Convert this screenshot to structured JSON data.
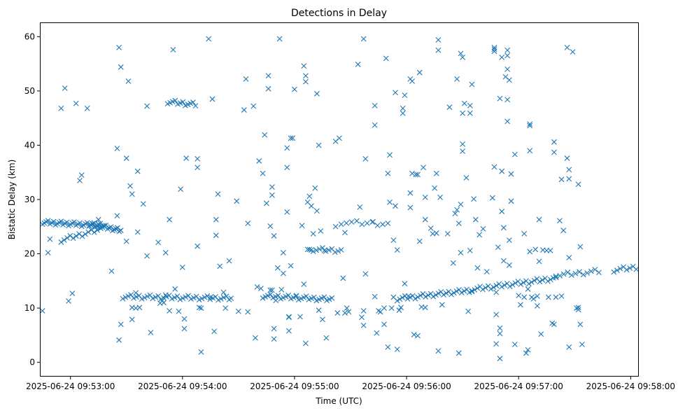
{
  "chart_data": {
    "type": "scatter",
    "title": "Detections in Delay",
    "xlabel": "Time (UTC)",
    "ylabel": "Bistatic Delay (km)",
    "marker": "x",
    "color": "#1f77b4",
    "xlim_seconds": [
      -16,
      304
    ],
    "ylim": [
      -2.5,
      62.5
    ],
    "x_ticks": [
      {
        "t": 0,
        "label": "2025-06-24 09:53:00"
      },
      {
        "t": 60,
        "label": "2025-06-24 09:54:00"
      },
      {
        "t": 120,
        "label": "2025-06-24 09:55:00"
      },
      {
        "t": 180,
        "label": "2025-06-24 09:56:00"
      },
      {
        "t": 240,
        "label": "2025-06-24 09:57:00"
      },
      {
        "t": 300,
        "label": "2025-06-24 09:58:00"
      }
    ],
    "y_ticks": [
      {
        "v": 0,
        "label": "0"
      },
      {
        "v": 10,
        "label": "10"
      },
      {
        "v": 20,
        "label": "20"
      },
      {
        "v": 30,
        "label": "30"
      },
      {
        "v": 40,
        "label": "40"
      },
      {
        "v": 50,
        "label": "50"
      },
      {
        "v": 60,
        "label": "60"
      }
    ],
    "tracks": [
      {
        "name": "track-a",
        "t_start": -15,
        "t_end": 18,
        "y_start": 25.8,
        "y_end": 25.2,
        "n": 34
      },
      {
        "name": "track-b",
        "t_start": -5,
        "t_end": 16,
        "y_start": 22.5,
        "y_end": 24.5,
        "n": 14
      },
      {
        "name": "track-c",
        "t_start": 10,
        "t_end": 27,
        "y_start": 25.5,
        "y_end": 24.3,
        "n": 20
      },
      {
        "name": "track-d",
        "t_start": 28,
        "t_end": 85,
        "y_start": 12.1,
        "y_end": 11.8,
        "n": 40
      },
      {
        "name": "track-e",
        "t_start": 103,
        "t_end": 140,
        "y_start": 12.2,
        "y_end": 11.6,
        "n": 28
      },
      {
        "name": "track-f",
        "t_start": 175,
        "t_end": 215,
        "y_start": 11.7,
        "y_end": 13.3,
        "n": 30
      },
      {
        "name": "track-g",
        "t_start": 215,
        "t_end": 260,
        "y_start": 13.4,
        "y_end": 15.5,
        "n": 32
      },
      {
        "name": "track-h",
        "t_start": 260,
        "t_end": 283,
        "y_start": 16.0,
        "y_end": 16.8,
        "n": 12
      },
      {
        "name": "track-i",
        "t_start": 291,
        "t_end": 303,
        "y_start": 17.0,
        "y_end": 17.5,
        "n": 8
      },
      {
        "name": "track-j",
        "t_start": 52,
        "t_end": 67,
        "y_start": 48.0,
        "y_end": 47.5,
        "n": 12
      },
      {
        "name": "track-k",
        "t_start": 145,
        "t_end": 170,
        "y_start": 25.8,
        "y_end": 25.5,
        "n": 10
      },
      {
        "name": "track-l",
        "t_start": 130,
        "t_end": 145,
        "y_start": 20.8,
        "y_end": 20.6,
        "n": 10
      }
    ],
    "points": [
      [
        -15,
        9.5
      ],
      [
        -12,
        20.2
      ],
      [
        -11,
        22.7
      ],
      [
        -5,
        46.8
      ],
      [
        -3,
        50.5
      ],
      [
        -1,
        11.3
      ],
      [
        1,
        12.7
      ],
      [
        3,
        47.7
      ],
      [
        5,
        33.5
      ],
      [
        6,
        34.5
      ],
      [
        9,
        46.8
      ],
      [
        15,
        26.3
      ],
      [
        22,
        16.8
      ],
      [
        25,
        27
      ],
      [
        25,
        39.4
      ],
      [
        26,
        58
      ],
      [
        26,
        4.1
      ],
      [
        27,
        54.4
      ],
      [
        27,
        7
      ],
      [
        30,
        22.3
      ],
      [
        30,
        37.6
      ],
      [
        31,
        51.8
      ],
      [
        32,
        32.5
      ],
      [
        33,
        31
      ],
      [
        33,
        7.9
      ],
      [
        33,
        10.1
      ],
      [
        35,
        12.8
      ],
      [
        35,
        10
      ],
      [
        36,
        24
      ],
      [
        36,
        35.2
      ],
      [
        37,
        10.1
      ],
      [
        39,
        29.2
      ],
      [
        41,
        47.2
      ],
      [
        41,
        19.6
      ],
      [
        43,
        5.5
      ],
      [
        47,
        22.1
      ],
      [
        48,
        10.9
      ],
      [
        49,
        11.3
      ],
      [
        50,
        11
      ],
      [
        51,
        12.4
      ],
      [
        51,
        20.2
      ],
      [
        53,
        26.3
      ],
      [
        53,
        9.5
      ],
      [
        55,
        57.6
      ],
      [
        56,
        13.5
      ],
      [
        58,
        9.4
      ],
      [
        59,
        31.9
      ],
      [
        60,
        17.5
      ],
      [
        61,
        8
      ],
      [
        61,
        6.2
      ],
      [
        62,
        37.6
      ],
      [
        68,
        35.9
      ],
      [
        68,
        37.5
      ],
      [
        68,
        21.4
      ],
      [
        69,
        10.1
      ],
      [
        70,
        10
      ],
      [
        70,
        1.9
      ],
      [
        74,
        59.6
      ],
      [
        75,
        12
      ],
      [
        76,
        48.5
      ],
      [
        77,
        5.7
      ],
      [
        78,
        26.3
      ],
      [
        78,
        23.4
      ],
      [
        79,
        31
      ],
      [
        80,
        17.7
      ],
      [
        82,
        12.9
      ],
      [
        83,
        10
      ],
      [
        85,
        18.7
      ],
      [
        86,
        11.8
      ],
      [
        89,
        29.7
      ],
      [
        90,
        9.4
      ],
      [
        93,
        46.5
      ],
      [
        94,
        52.2
      ],
      [
        95,
        9.3
      ],
      [
        95,
        25.6
      ],
      [
        98,
        47.2
      ],
      [
        99,
        4.5
      ],
      [
        100,
        13.9
      ],
      [
        101,
        37.1
      ],
      [
        102,
        13.6
      ],
      [
        103,
        34.8
      ],
      [
        104,
        41.9
      ],
      [
        105,
        29.3
      ],
      [
        106,
        52.8
      ],
      [
        106,
        50.4
      ],
      [
        107,
        13.3
      ],
      [
        107,
        25.1
      ],
      [
        108,
        32.3
      ],
      [
        108,
        30.8
      ],
      [
        108,
        13.3
      ],
      [
        109,
        23.3
      ],
      [
        109,
        6.2
      ],
      [
        109,
        4.3
      ],
      [
        110,
        11.4
      ],
      [
        111,
        17.4
      ],
      [
        112,
        59.6
      ],
      [
        113,
        13.4
      ],
      [
        114,
        16.4
      ],
      [
        114,
        20.2
      ],
      [
        116,
        39.5
      ],
      [
        116,
        35.9
      ],
      [
        116,
        27.7
      ],
      [
        117,
        5.8
      ],
      [
        117,
        8.4
      ],
      [
        117,
        8.3
      ],
      [
        118,
        17.8
      ],
      [
        118,
        41.3
      ],
      [
        119,
        41.3
      ],
      [
        120,
        50.3
      ],
      [
        121,
        12.3
      ],
      [
        123,
        8.4
      ],
      [
        124,
        25.2
      ],
      [
        125,
        54.6
      ],
      [
        126,
        52.8
      ],
      [
        126,
        51.7
      ],
      [
        125,
        14.4
      ],
      [
        126,
        3.5
      ],
      [
        127,
        20.8
      ],
      [
        128,
        20.8
      ],
      [
        127,
        29.5
      ],
      [
        128,
        30.6
      ],
      [
        129,
        28.8
      ],
      [
        129,
        20.7
      ],
      [
        130,
        23.7
      ],
      [
        131,
        32.1
      ],
      [
        132,
        27.9
      ],
      [
        132,
        49.5
      ],
      [
        133,
        40
      ],
      [
        133,
        9.6
      ],
      [
        134,
        24.2
      ],
      [
        135,
        7.9
      ],
      [
        136,
        20.6
      ],
      [
        137,
        4.5
      ],
      [
        142,
        40.7
      ],
      [
        142,
        25
      ],
      [
        143,
        9.1
      ],
      [
        144,
        41.3
      ],
      [
        146,
        15.5
      ],
      [
        147,
        9.1
      ],
      [
        147,
        23.9
      ],
      [
        148,
        10
      ],
      [
        149,
        9.3
      ],
      [
        154,
        54.9
      ],
      [
        155,
        28.6
      ],
      [
        156,
        8.3
      ],
      [
        157,
        6.8
      ],
      [
        158,
        16.3
      ],
      [
        158,
        37.5
      ],
      [
        157,
        59.6
      ],
      [
        157,
        9.5
      ],
      [
        162,
        25.9
      ],
      [
        163,
        43.7
      ],
      [
        163,
        47.3
      ],
      [
        163,
        12.1
      ],
      [
        164,
        5.4
      ],
      [
        165,
        9.5
      ],
      [
        166,
        9.3
      ],
      [
        168,
        10
      ],
      [
        168,
        7
      ],
      [
        169,
        56
      ],
      [
        170,
        2.8
      ],
      [
        170,
        34.8
      ],
      [
        171,
        38.2
      ],
      [
        171,
        29.5
      ],
      [
        172,
        10
      ],
      [
        173,
        12
      ],
      [
        173,
        22.5
      ],
      [
        174,
        49.7
      ],
      [
        174,
        28.8
      ],
      [
        175,
        2.4
      ],
      [
        175,
        20.7
      ],
      [
        176,
        9.6
      ],
      [
        177,
        10.1
      ],
      [
        178,
        46.8
      ],
      [
        178,
        45.9
      ],
      [
        179,
        14.5
      ],
      [
        179,
        49.2
      ],
      [
        181,
        12.2
      ],
      [
        182,
        31.2
      ],
      [
        182,
        28.5
      ],
      [
        182,
        52.2
      ],
      [
        183,
        34.8
      ],
      [
        183,
        51.8
      ],
      [
        184,
        5.1
      ],
      [
        185,
        34.6
      ],
      [
        186,
        34.6
      ],
      [
        186,
        4.9
      ],
      [
        187,
        22.3
      ],
      [
        187,
        53.4
      ],
      [
        188,
        10.2
      ],
      [
        189,
        35.9
      ],
      [
        190,
        26.3
      ],
      [
        190,
        30.4
      ],
      [
        190,
        10.1
      ],
      [
        193,
        24.7
      ],
      [
        194,
        23.7
      ],
      [
        195,
        32.1
      ],
      [
        196,
        34.8
      ],
      [
        196,
        23.8
      ],
      [
        197,
        59.4
      ],
      [
        197,
        57.5
      ],
      [
        197,
        2.1
      ],
      [
        198,
        30.4
      ],
      [
        199,
        10.6
      ],
      [
        202,
        23.7
      ],
      [
        203,
        47
      ],
      [
        205,
        18.3
      ],
      [
        206,
        27.4
      ],
      [
        207,
        28.1
      ],
      [
        207,
        52.2
      ],
      [
        208,
        1.7
      ],
      [
        208,
        25.6
      ],
      [
        209,
        56.9
      ],
      [
        209,
        29.1
      ],
      [
        209,
        20.2
      ],
      [
        210,
        38.9
      ],
      [
        210,
        40.2
      ],
      [
        210,
        56.2
      ],
      [
        210,
        45.9
      ],
      [
        211,
        47.7
      ],
      [
        212,
        34
      ],
      [
        213,
        9.4
      ],
      [
        214,
        20.6
      ],
      [
        214,
        45.9
      ],
      [
        214,
        47.3
      ],
      [
        215,
        51.2
      ],
      [
        216,
        30.1
      ],
      [
        217,
        26.3
      ],
      [
        218,
        17.4
      ],
      [
        219,
        23.5
      ],
      [
        221,
        24.6
      ],
      [
        223,
        16.7
      ],
      [
        226,
        30.3
      ],
      [
        227,
        57.7
      ],
      [
        227,
        58
      ],
      [
        227,
        57.3
      ],
      [
        227,
        36
      ],
      [
        228,
        3.4
      ],
      [
        228,
        12.9
      ],
      [
        228,
        8.8
      ],
      [
        229,
        21.2
      ],
      [
        230,
        0.7
      ],
      [
        230,
        6.3
      ],
      [
        230,
        5.3
      ],
      [
        230,
        48.6
      ],
      [
        231,
        35.2
      ],
      [
        231,
        27.8
      ],
      [
        231,
        56.2
      ],
      [
        232,
        24.8
      ],
      [
        232,
        18.7
      ],
      [
        233,
        52.6
      ],
      [
        234,
        57.5
      ],
      [
        234,
        56.5
      ],
      [
        234,
        54
      ],
      [
        234,
        48.4
      ],
      [
        234,
        44.4
      ],
      [
        235,
        52
      ],
      [
        235,
        22.5
      ],
      [
        235,
        17.9
      ],
      [
        236,
        34.7
      ],
      [
        236,
        29.7
      ],
      [
        238,
        38.3
      ],
      [
        238,
        3.3
      ],
      [
        241,
        10.6
      ],
      [
        243,
        23.7
      ],
      [
        244,
        1.7
      ],
      [
        245,
        2.3
      ],
      [
        246,
        20.4
      ],
      [
        246,
        43.9
      ],
      [
        246,
        43.6
      ],
      [
        245,
        13.5
      ],
      [
        246,
        39
      ],
      [
        248,
        11.7
      ],
      [
        249,
        20.8
      ],
      [
        250,
        10.4
      ],
      [
        251,
        18.6
      ],
      [
        251,
        26.3
      ],
      [
        252,
        5.2
      ],
      [
        253,
        20.7
      ],
      [
        255,
        20.6
      ],
      [
        257,
        20.6
      ],
      [
        258,
        7.2
      ],
      [
        259,
        7
      ],
      [
        259,
        40.6
      ],
      [
        259,
        38.7
      ],
      [
        260,
        12
      ],
      [
        262,
        26.1
      ],
      [
        263,
        33.7
      ],
      [
        264,
        24.3
      ],
      [
        266,
        58
      ],
      [
        266,
        37.6
      ],
      [
        267,
        35.5
      ],
      [
        267,
        33.8
      ],
      [
        267,
        19.3
      ],
      [
        267,
        2.8
      ],
      [
        269,
        57.2
      ],
      [
        271,
        10
      ],
      [
        272,
        9.7
      ],
      [
        272,
        10.1
      ],
      [
        272,
        32.8
      ],
      [
        273,
        7
      ],
      [
        273,
        21.3
      ],
      [
        274,
        3.3
      ],
      [
        240,
        12.3
      ],
      [
        243,
        12
      ],
      [
        247,
        12
      ],
      [
        250,
        12.2
      ],
      [
        256,
        12
      ],
      [
        263,
        12.2
      ]
    ]
  }
}
